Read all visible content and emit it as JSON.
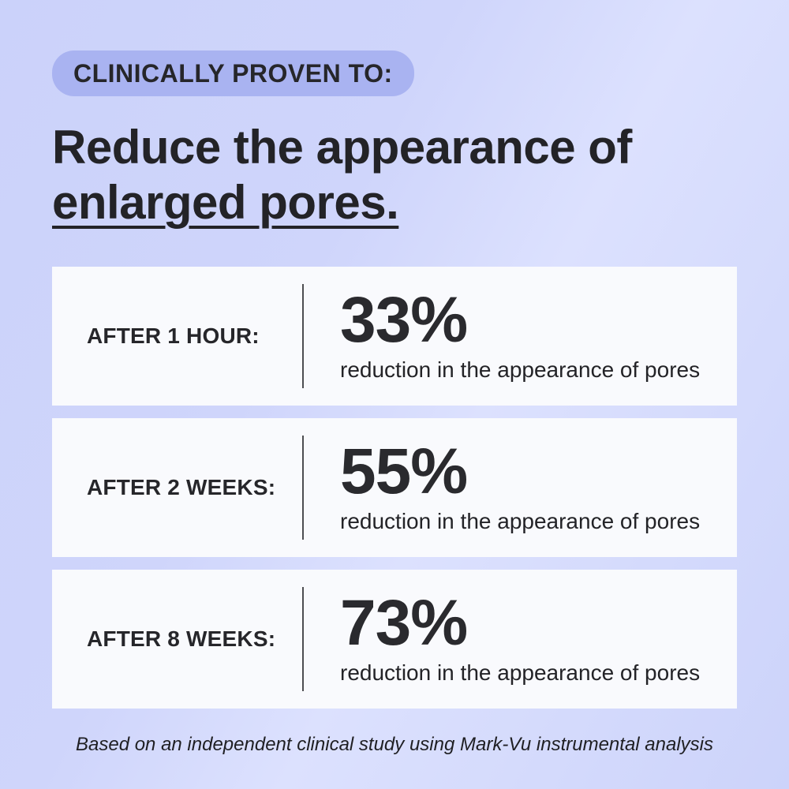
{
  "badge": {
    "label": "CLINICALLY PROVEN TO:"
  },
  "heading": {
    "line1": "Reduce the appearance of",
    "line2": "enlarged pores."
  },
  "cards": [
    {
      "label": "AFTER 1 HOUR:",
      "value": "33%",
      "caption": "reduction in the appearance of pores"
    },
    {
      "label": "AFTER 2 WEEKS:",
      "value": "55%",
      "caption": "reduction in the appearance of pores"
    },
    {
      "label": "AFTER 8 WEEKS:",
      "value": "73%",
      "caption": "reduction in the appearance of pores"
    }
  ],
  "footnote": "Based on an independent clinical study using Mark-Vu instrumental analysis",
  "colors": {
    "background": "#cfd5fb",
    "badge_pill": "#a9b3f1",
    "card_background": "#f9fafd",
    "text": "#27272b",
    "divider": "#4d4d52"
  }
}
